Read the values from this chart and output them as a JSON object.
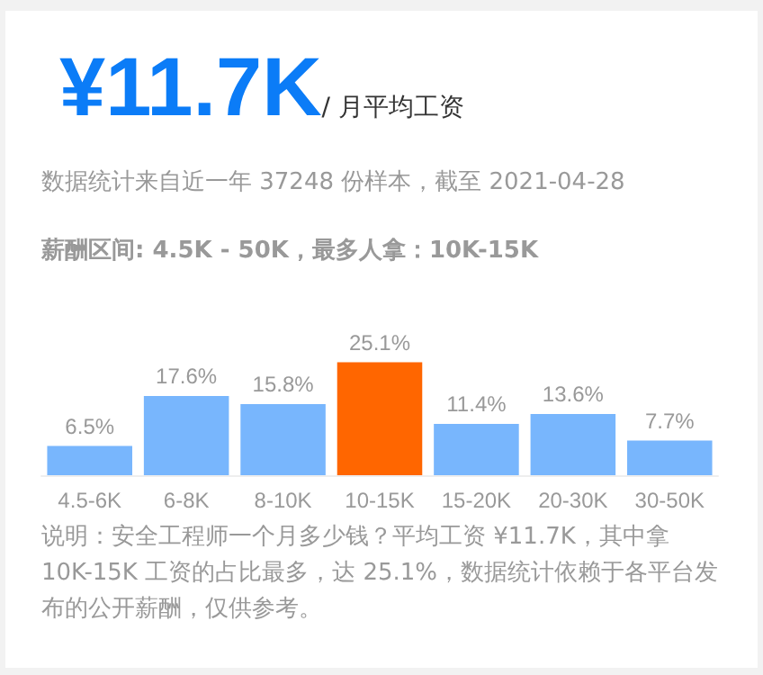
{
  "chart_data": {
    "type": "bar",
    "title": "¥11.7K",
    "subtitle": "/ 月平均工资",
    "annotations": [
      "数据统计来自近一年 37248 份样本，截至 2021-04-28",
      "薪酬区间: 4.5K - 50K，最多人拿：10K-15K",
      "说明：安全工程师一个月多少钱？平均工资 ¥11.7K，其中拿 10K-15K 工资的占比最多，达 25.1%，数据统计依赖于各平台发布的公开薪酬，仅供参考。"
    ],
    "categories": [
      "4.5-6K",
      "6-8K",
      "8-10K",
      "10-15K",
      "15-20K",
      "20-30K",
      "30-50K"
    ],
    "values": [
      6.5,
      17.6,
      15.8,
      25.1,
      11.4,
      13.6,
      7.7
    ],
    "value_labels": [
      "6.5%",
      "17.6%",
      "15.8%",
      "25.1%",
      "11.4%",
      "13.6%",
      "7.7%"
    ],
    "colors": [
      "#78b6fd",
      "#78b6fd",
      "#78b6fd",
      "#ff6600",
      "#78b6fd",
      "#78b6fd",
      "#78b6fd"
    ]
  }
}
